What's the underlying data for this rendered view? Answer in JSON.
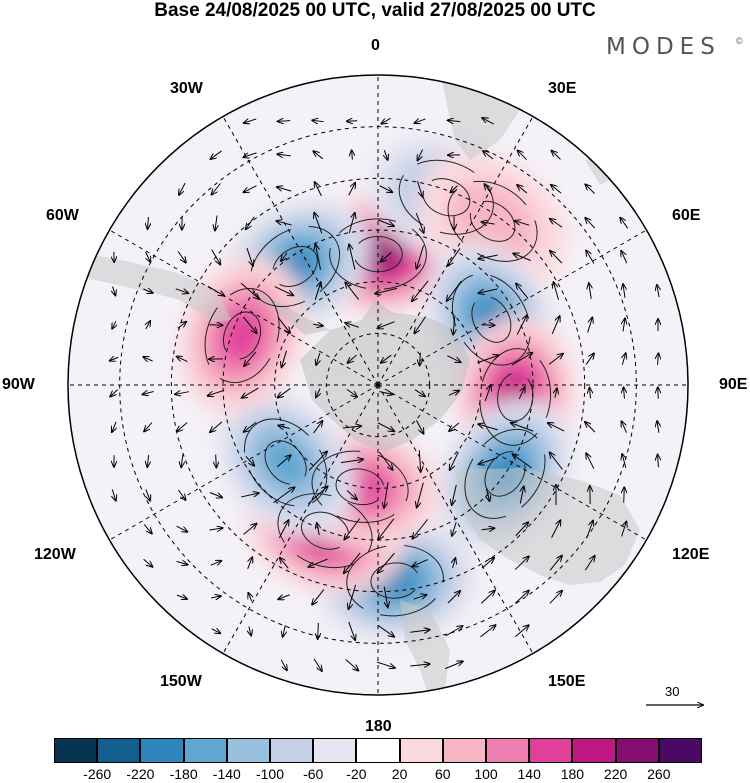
{
  "header": {
    "title": "Base 24/08/2025 00 UTC, valid 27/08/2025 00 UTC",
    "brand": "MODES",
    "brand_mark": "©"
  },
  "map": {
    "projection": "south polar stereographic",
    "longitude_labels": {
      "top": "0",
      "top_right": "30E",
      "right_upper": "60E",
      "right": "90E",
      "right_lower": "120E",
      "bottom_right": "150E",
      "bottom": "180",
      "bottom_left": "150W",
      "left_lower": "120W",
      "left": "90W",
      "left_upper": "60W",
      "top_left": "30W"
    },
    "anomaly_centers": [
      {
        "name": "anomaly-high-0",
        "lon": 0,
        "lat": -52,
        "value": 240,
        "sign": "positive"
      },
      {
        "name": "anomaly-low-30w",
        "lon": -35,
        "lat": -48,
        "value": -200,
        "sign": "negative"
      },
      {
        "name": "anomaly-low-20e",
        "lon": 20,
        "lat": -32,
        "value": -100,
        "sign": "negative"
      },
      {
        "name": "anomaly-high-30e",
        "lon": 35,
        "lat": -32,
        "value": 60,
        "sign": "positive"
      },
      {
        "name": "anomaly-low-60e",
        "lon": 60,
        "lat": -52,
        "value": -200,
        "sign": "negative"
      },
      {
        "name": "anomaly-high-90e",
        "lon": 95,
        "lat": -50,
        "value": 180,
        "sign": "positive"
      },
      {
        "name": "anomaly-low-120e",
        "lon": 125,
        "lat": -45,
        "value": -180,
        "sign": "negative"
      },
      {
        "name": "anomaly-low-175e",
        "lon": 175,
        "lat": -33,
        "value": -200,
        "sign": "negative"
      },
      {
        "name": "anomaly-high-160w",
        "lon": -160,
        "lat": -45,
        "value": 180,
        "sign": "positive"
      },
      {
        "name": "anomaly-high-170w",
        "lon": -170,
        "lat": -60,
        "value": 160,
        "sign": "positive"
      },
      {
        "name": "anomaly-low-130w",
        "lon": -130,
        "lat": -55,
        "value": -160,
        "sign": "negative"
      },
      {
        "name": "anomaly-high-70w",
        "lon": -70,
        "lat": -48,
        "value": 160,
        "sign": "positive"
      }
    ]
  },
  "colorbar": {
    "levels": [
      "-260",
      "-220",
      "-180",
      "-140",
      "-100",
      "-60",
      "-20",
      "20",
      "60",
      "100",
      "140",
      "180",
      "220",
      "260"
    ],
    "colors": [
      "#06334f",
      "#125f8f",
      "#2f86bd",
      "#5fa6d1",
      "#98c0df",
      "#c6d1e8",
      "#e6e5f1",
      "#ffffff",
      "#fbdadf",
      "#f7b6c4",
      "#ef7fb0",
      "#e1409a",
      "#bd1782",
      "#850d71",
      "#4a0a63"
    ]
  },
  "wind_scale": {
    "label": "30"
  }
}
